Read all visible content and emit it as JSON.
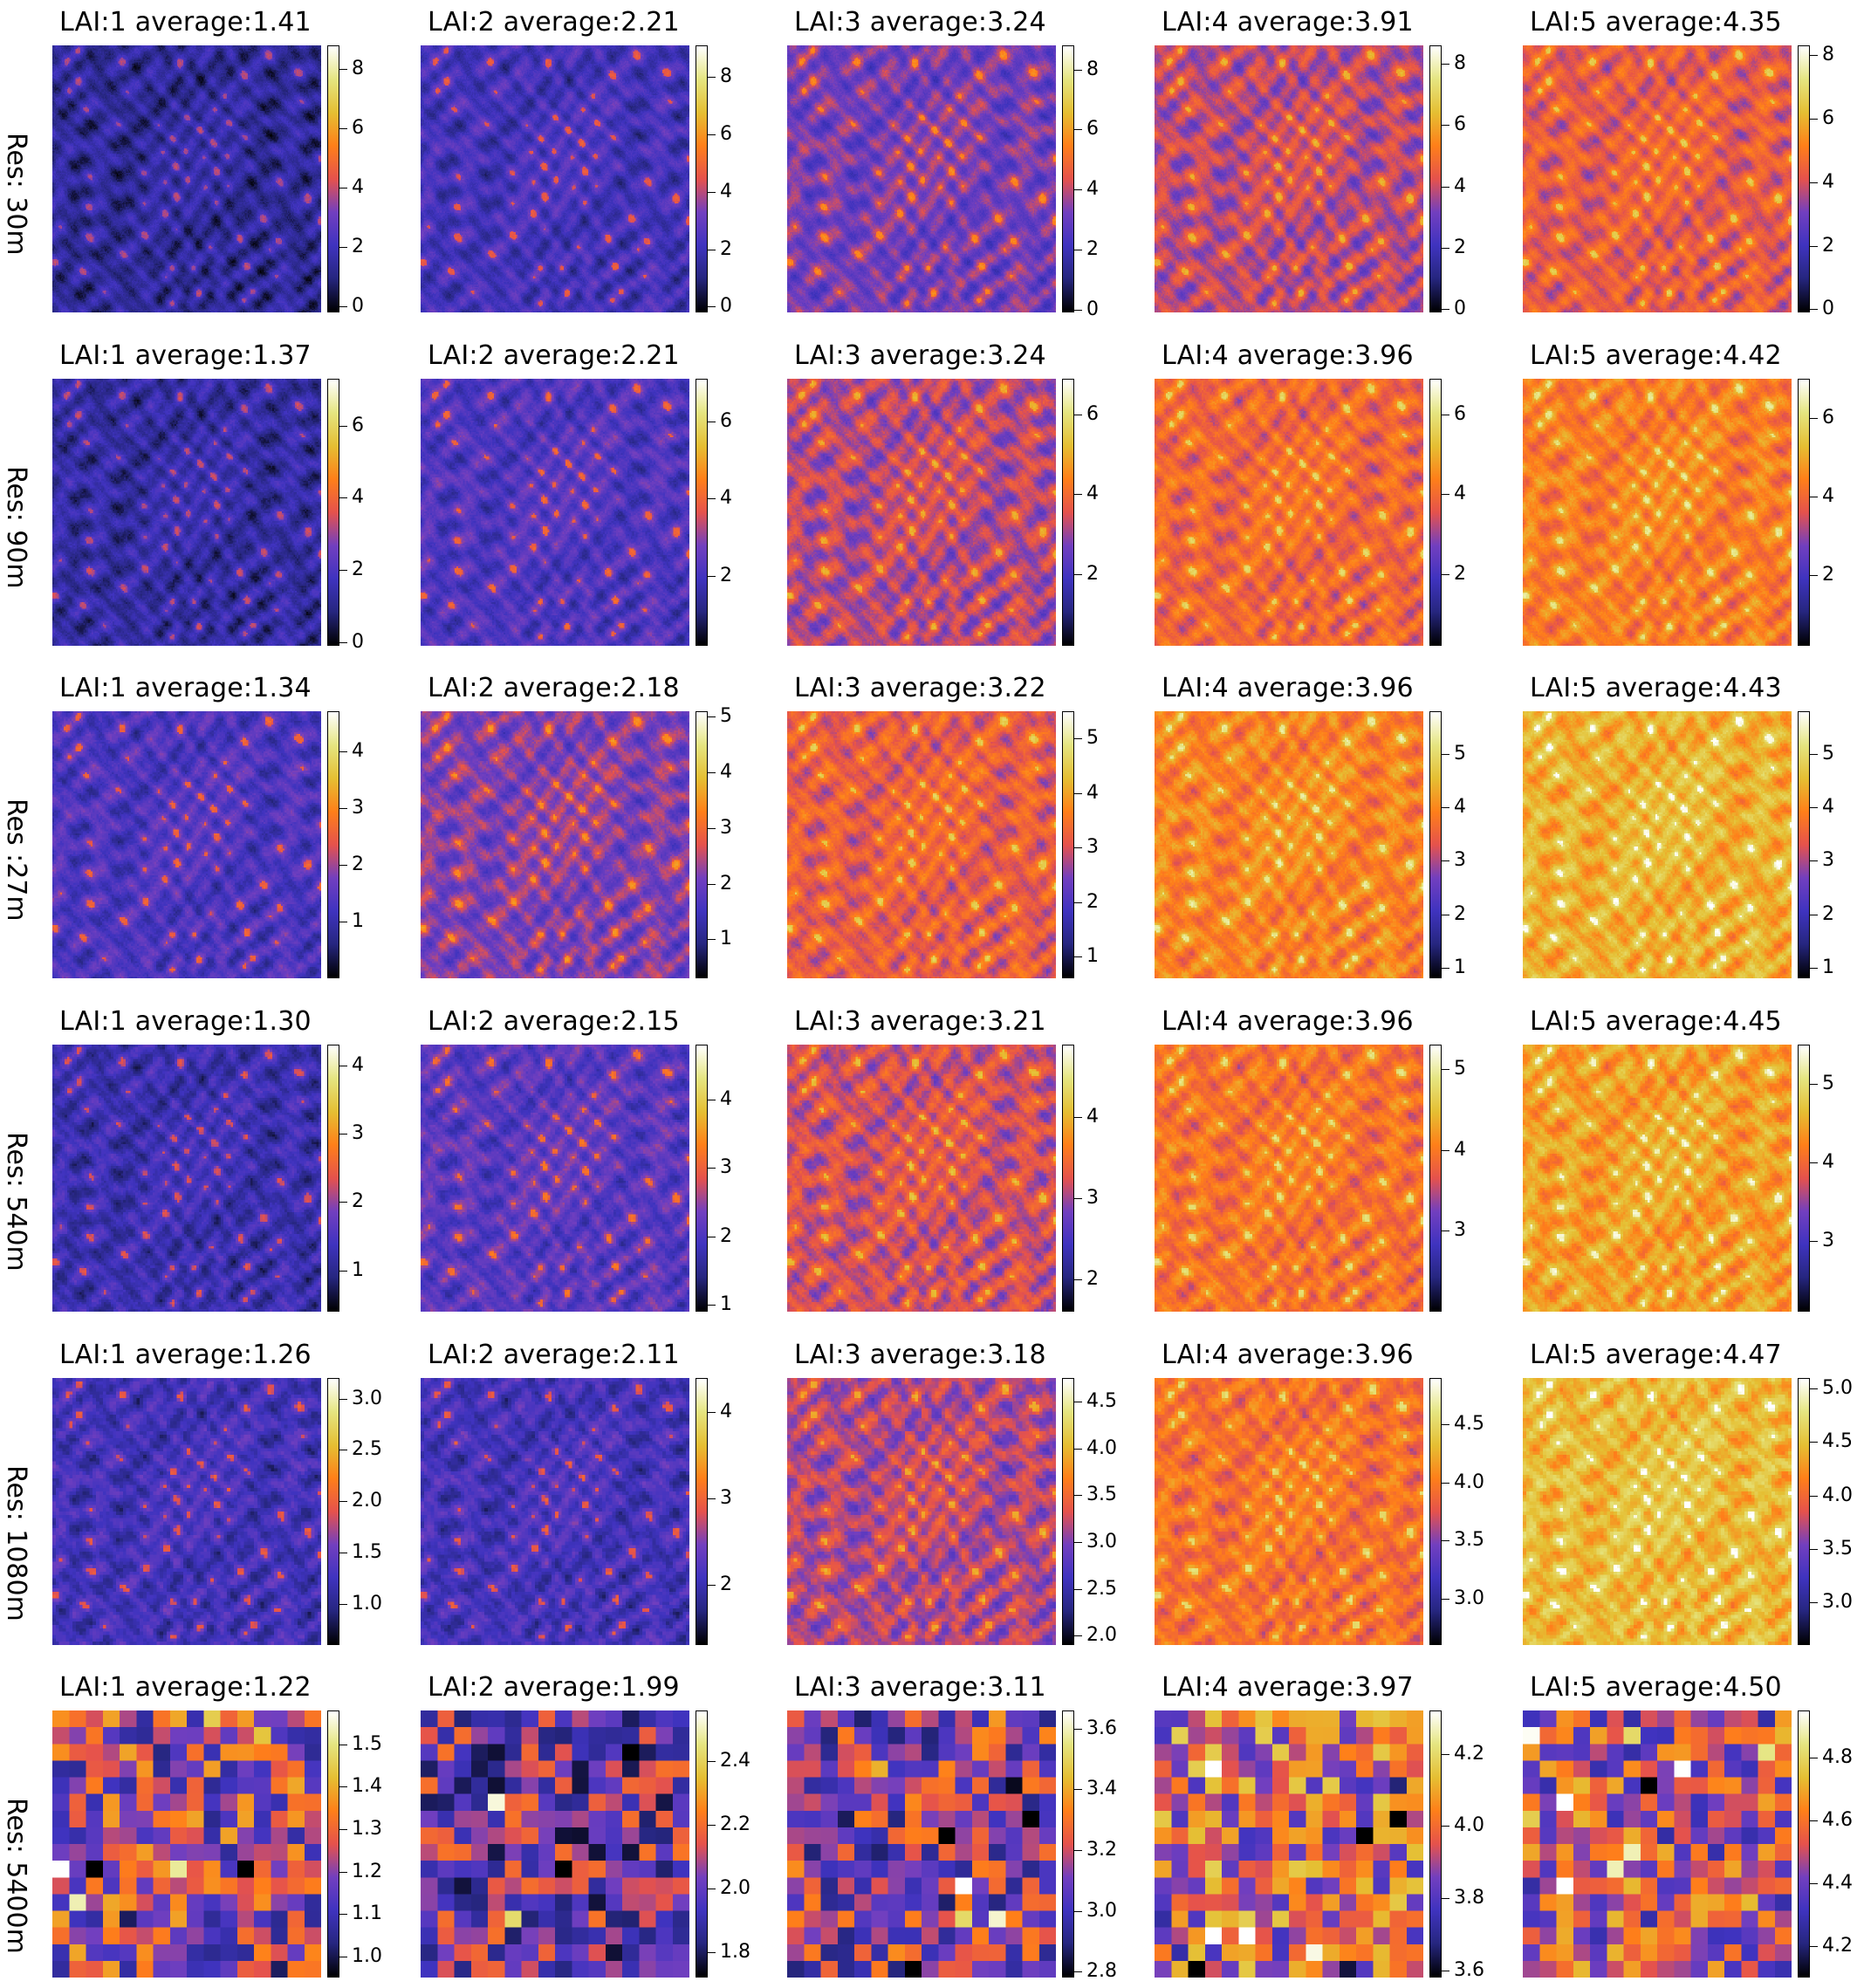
{
  "colors": {
    "colormap": "CMRmap",
    "stops": [
      "#000000",
      "#26267f",
      "#3f33bf",
      "#723fbf",
      "#e5524c",
      "#ff7f19",
      "#e5bf33",
      "#e5e580",
      "#ffffff"
    ]
  },
  "chart_data": {
    "type": "heatmap",
    "grid_rows": 6,
    "grid_cols": 5,
    "row_labels": [
      "Res: 30m",
      "Res: 90m",
      "Res :27m",
      "Res: 540m",
      "Res: 1080m",
      "Res: 5400m"
    ],
    "panels": [
      [
        {
          "title": "LAI:1  average:1.41",
          "lai": 1,
          "average": 1.41,
          "vmin": -0.2,
          "vmax": 8.8,
          "ticks": [
            "0",
            "2",
            "4",
            "6",
            "8"
          ],
          "tick_values": [
            0,
            2,
            4,
            6,
            8
          ]
        },
        {
          "title": "LAI:2  average:2.21",
          "lai": 2,
          "average": 2.21,
          "vmin": -0.2,
          "vmax": 9.1,
          "ticks": [
            "0",
            "2",
            "4",
            "6",
            "8"
          ],
          "tick_values": [
            0,
            2,
            4,
            6,
            8
          ]
        },
        {
          "title": "LAI:3  average:3.24",
          "lai": 3,
          "average": 3.24,
          "vmin": -0.1,
          "vmax": 8.8,
          "ticks": [
            "0",
            "2",
            "4",
            "6",
            "8"
          ],
          "tick_values": [
            0,
            2,
            4,
            6,
            8
          ]
        },
        {
          "title": "LAI:4  average:3.91",
          "lai": 4,
          "average": 3.91,
          "vmin": -0.1,
          "vmax": 8.6,
          "ticks": [
            "0",
            "2",
            "4",
            "6",
            "8"
          ],
          "tick_values": [
            0,
            2,
            4,
            6,
            8
          ]
        },
        {
          "title": "LAI:5  average:4.35",
          "lai": 5,
          "average": 4.35,
          "vmin": -0.1,
          "vmax": 8.3,
          "ticks": [
            "0",
            "2",
            "4",
            "6",
            "8"
          ],
          "tick_values": [
            0,
            2,
            4,
            6,
            8
          ]
        }
      ],
      [
        {
          "title": "LAI:1  average:1.37",
          "lai": 1,
          "average": 1.37,
          "vmin": -0.1,
          "vmax": 7.3,
          "ticks": [
            "0",
            "2",
            "4",
            "6"
          ],
          "tick_values": [
            0,
            2,
            4,
            6
          ]
        },
        {
          "title": "LAI:2  average:2.21",
          "lai": 2,
          "average": 2.21,
          "vmin": 0.2,
          "vmax": 7.1,
          "ticks": [
            "2",
            "4",
            "6"
          ],
          "tick_values": [
            2,
            4,
            6
          ]
        },
        {
          "title": "LAI:3  average:3.24",
          "lai": 3,
          "average": 3.24,
          "vmin": 0.2,
          "vmax": 6.9,
          "ticks": [
            "2",
            "4",
            "6"
          ],
          "tick_values": [
            2,
            4,
            6
          ]
        },
        {
          "title": "LAI:4  average:3.96",
          "lai": 4,
          "average": 3.96,
          "vmin": 0.2,
          "vmax": 6.9,
          "ticks": [
            "2",
            "4",
            "6"
          ],
          "tick_values": [
            2,
            4,
            6
          ]
        },
        {
          "title": "LAI:5  average:4.42",
          "lai": 5,
          "average": 4.42,
          "vmin": 0.2,
          "vmax": 7.0,
          "ticks": [
            "2",
            "4",
            "6"
          ],
          "tick_values": [
            2,
            4,
            6
          ]
        }
      ],
      [
        {
          "title": "LAI:1  average:1.34",
          "lai": 1,
          "average": 1.34,
          "vmin": 0.0,
          "vmax": 4.7,
          "ticks": [
            "1",
            "2",
            "3",
            "4"
          ],
          "tick_values": [
            1,
            2,
            3,
            4
          ]
        },
        {
          "title": "LAI:2  average:2.18",
          "lai": 2,
          "average": 2.18,
          "vmin": 0.3,
          "vmax": 5.1,
          "ticks": [
            "1",
            "2",
            "3",
            "4",
            "5"
          ],
          "tick_values": [
            1,
            2,
            3,
            4,
            5
          ]
        },
        {
          "title": "LAI:3  average:3.22",
          "lai": 3,
          "average": 3.22,
          "vmin": 0.6,
          "vmax": 5.5,
          "ticks": [
            "1",
            "2",
            "3",
            "4",
            "5"
          ],
          "tick_values": [
            1,
            2,
            3,
            4,
            5
          ]
        },
        {
          "title": "LAI:4  average:3.96",
          "lai": 4,
          "average": 3.96,
          "vmin": 0.8,
          "vmax": 5.8,
          "ticks": [
            "1",
            "2",
            "3",
            "4",
            "5"
          ],
          "tick_values": [
            1,
            2,
            3,
            4,
            5
          ]
        },
        {
          "title": "LAI:5  average:4.43",
          "lai": 5,
          "average": 4.43,
          "vmin": 0.8,
          "vmax": 5.8,
          "ticks": [
            "1",
            "2",
            "3",
            "4",
            "5"
          ],
          "tick_values": [
            1,
            2,
            3,
            4,
            5
          ]
        }
      ],
      [
        {
          "title": "LAI:1  average:1.30",
          "lai": 1,
          "average": 1.3,
          "vmin": 0.4,
          "vmax": 4.3,
          "ticks": [
            "1",
            "2",
            "3",
            "4"
          ],
          "tick_values": [
            1,
            2,
            3,
            4
          ]
        },
        {
          "title": "LAI:2  average:2.15",
          "lai": 2,
          "average": 2.15,
          "vmin": 0.9,
          "vmax": 4.8,
          "ticks": [
            "1",
            "2",
            "3",
            "4"
          ],
          "tick_values": [
            1,
            2,
            3,
            4
          ]
        },
        {
          "title": "LAI:3  average:3.21",
          "lai": 3,
          "average": 3.21,
          "vmin": 1.6,
          "vmax": 4.9,
          "ticks": [
            "2",
            "3",
            "4"
          ],
          "tick_values": [
            2,
            3,
            4
          ]
        },
        {
          "title": "LAI:4  average:3.96",
          "lai": 4,
          "average": 3.96,
          "vmin": 2.0,
          "vmax": 5.3,
          "ticks": [
            "3",
            "4",
            "5"
          ],
          "tick_values": [
            3,
            4,
            5
          ]
        },
        {
          "title": "LAI:5  average:4.45",
          "lai": 5,
          "average": 4.45,
          "vmin": 2.1,
          "vmax": 5.5,
          "ticks": [
            "3",
            "4",
            "5"
          ],
          "tick_values": [
            3,
            4,
            5
          ]
        }
      ],
      [
        {
          "title": "LAI:1  average:1.26",
          "lai": 1,
          "average": 1.26,
          "vmin": 0.6,
          "vmax": 3.2,
          "ticks": [
            "1.0",
            "1.5",
            "2.0",
            "2.5",
            "3.0"
          ],
          "tick_values": [
            1.0,
            1.5,
            2.0,
            2.5,
            3.0
          ]
        },
        {
          "title": "LAI:2  average:2.11",
          "lai": 2,
          "average": 2.11,
          "vmin": 1.3,
          "vmax": 4.4,
          "ticks": [
            "2",
            "3",
            "4"
          ],
          "tick_values": [
            2,
            3,
            4
          ]
        },
        {
          "title": "LAI:3  average:3.18",
          "lai": 3,
          "average": 3.18,
          "vmin": 1.9,
          "vmax": 4.75,
          "ticks": [
            "2.0",
            "2.5",
            "3.0",
            "3.5",
            "4.0",
            "4.5"
          ],
          "tick_values": [
            2.0,
            2.5,
            3.0,
            3.5,
            4.0,
            4.5
          ]
        },
        {
          "title": "LAI:4  average:3.96",
          "lai": 4,
          "average": 3.96,
          "vmin": 2.6,
          "vmax": 4.9,
          "ticks": [
            "3.0",
            "3.5",
            "4.0",
            "4.5"
          ],
          "tick_values": [
            3.0,
            3.5,
            4.0,
            4.5
          ]
        },
        {
          "title": "LAI:5  average:4.47",
          "lai": 5,
          "average": 4.47,
          "vmin": 2.6,
          "vmax": 5.1,
          "ticks": [
            "3.0",
            "3.5",
            "4.0",
            "4.5",
            "5.0"
          ],
          "tick_values": [
            3.0,
            3.5,
            4.0,
            4.5,
            5.0
          ]
        }
      ],
      [
        {
          "title": "LAI:1  average:1.22",
          "lai": 1,
          "average": 1.22,
          "vmin": 0.95,
          "vmax": 1.58,
          "ticks": [
            "1.0",
            "1.1",
            "1.2",
            "1.3",
            "1.4",
            "1.5"
          ],
          "tick_values": [
            1.0,
            1.1,
            1.2,
            1.3,
            1.4,
            1.5
          ]
        },
        {
          "title": "LAI:2  average:1.99",
          "lai": 2,
          "average": 1.99,
          "vmin": 1.72,
          "vmax": 2.56,
          "ticks": [
            "1.8",
            "2.0",
            "2.2",
            "2.4"
          ],
          "tick_values": [
            1.8,
            2.0,
            2.2,
            2.4
          ]
        },
        {
          "title": "LAI:3  average:3.11",
          "lai": 3,
          "average": 3.11,
          "vmin": 2.78,
          "vmax": 3.66,
          "ticks": [
            "2.8",
            "3.0",
            "3.2",
            "3.4",
            "3.6"
          ],
          "tick_values": [
            2.8,
            3.0,
            3.2,
            3.4,
            3.6
          ]
        },
        {
          "title": "LAI:4  average:3.97",
          "lai": 4,
          "average": 3.97,
          "vmin": 3.58,
          "vmax": 4.32,
          "ticks": [
            "3.6",
            "3.8",
            "4.0",
            "4.2"
          ],
          "tick_values": [
            3.6,
            3.8,
            4.0,
            4.2
          ]
        },
        {
          "title": "LAI:5  average:4.50",
          "lai": 5,
          "average": 4.5,
          "vmin": 4.1,
          "vmax": 4.95,
          "ticks": [
            "4.2",
            "4.4",
            "4.6",
            "4.8"
          ],
          "tick_values": [
            4.2,
            4.4,
            4.6,
            4.8
          ]
        }
      ]
    ]
  }
}
